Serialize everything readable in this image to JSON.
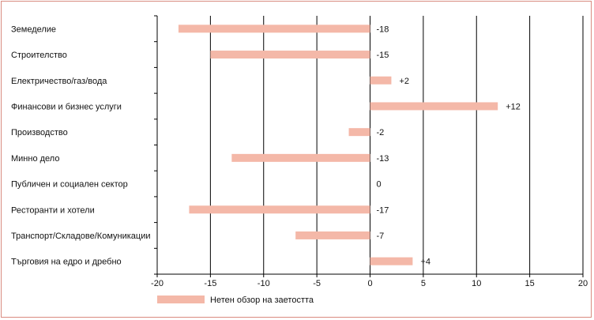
{
  "chart_data": {
    "type": "bar",
    "orientation": "horizontal",
    "categories": [
      "Земеделие",
      "Строителство",
      "Електричество/газ/вода",
      "Финансови и бизнес услуги",
      "Производство",
      "Минно дело",
      "Публичен и социален сектор",
      "Ресторанти и хотели",
      "Транспорт/Складове/Комуникации",
      "Търговия на едро и дребно"
    ],
    "series": [
      {
        "name": "Нетен обзор на заетостта",
        "values": [
          -18,
          -15,
          2,
          12,
          -2,
          -13,
          0,
          -17,
          -7,
          4
        ],
        "labels": [
          "-18",
          "-15",
          "+2",
          "+12",
          "-2",
          "-13",
          "0",
          "-17",
          "-7",
          "+4"
        ]
      }
    ],
    "xlim": [
      -20,
      20
    ],
    "xticks": [
      -20,
      -15,
      -10,
      -5,
      0,
      5,
      10,
      15,
      20
    ],
    "tick_labels": [
      "-20",
      "-15",
      "-10",
      "-5",
      "0",
      "5",
      "10",
      "15",
      "20"
    ],
    "grid": "vertical",
    "legend_position": "bottom-left",
    "colors": {
      "bar": "#f4b8a8",
      "frame": "#d98b80",
      "grid": "#000000"
    }
  }
}
